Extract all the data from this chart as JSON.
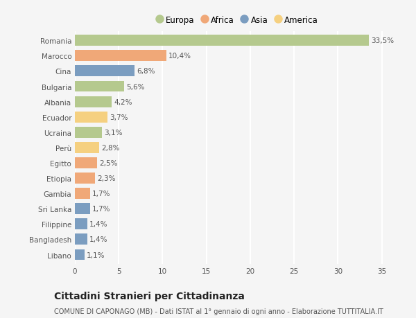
{
  "countries": [
    "Romania",
    "Marocco",
    "Cina",
    "Bulgaria",
    "Albania",
    "Ecuador",
    "Ucraina",
    "Perù",
    "Egitto",
    "Etiopia",
    "Gambia",
    "Sri Lanka",
    "Filippine",
    "Bangladesh",
    "Libano"
  ],
  "values": [
    33.5,
    10.4,
    6.8,
    5.6,
    4.2,
    3.7,
    3.1,
    2.8,
    2.5,
    2.3,
    1.7,
    1.7,
    1.4,
    1.4,
    1.1
  ],
  "labels": [
    "33,5%",
    "10,4%",
    "6,8%",
    "5,6%",
    "4,2%",
    "3,7%",
    "3,1%",
    "2,8%",
    "2,5%",
    "2,3%",
    "1,7%",
    "1,7%",
    "1,4%",
    "1,4%",
    "1,1%"
  ],
  "continents": [
    "Europa",
    "Africa",
    "Asia",
    "Europa",
    "Europa",
    "America",
    "Europa",
    "America",
    "Africa",
    "Africa",
    "Africa",
    "Asia",
    "Asia",
    "Asia",
    "Asia"
  ],
  "continent_colors": {
    "Europa": "#b5c98e",
    "Africa": "#f0a878",
    "Asia": "#7b9dc0",
    "America": "#f5d080"
  },
  "legend_order": [
    "Europa",
    "Africa",
    "Asia",
    "America"
  ],
  "title": "Cittadini Stranieri per Cittadinanza",
  "subtitle": "COMUNE DI CAPONAGO (MB) - Dati ISTAT al 1° gennaio di ogni anno - Elaborazione TUTTITALIA.IT",
  "xlim": [
    0,
    37
  ],
  "xticks": [
    0,
    5,
    10,
    15,
    20,
    25,
    30,
    35
  ],
  "background_color": "#f5f5f5",
  "bar_height": 0.72,
  "grid_color": "#ffffff",
  "label_fontsize": 7.5,
  "tick_fontsize": 7.5,
  "title_fontsize": 10,
  "subtitle_fontsize": 7
}
